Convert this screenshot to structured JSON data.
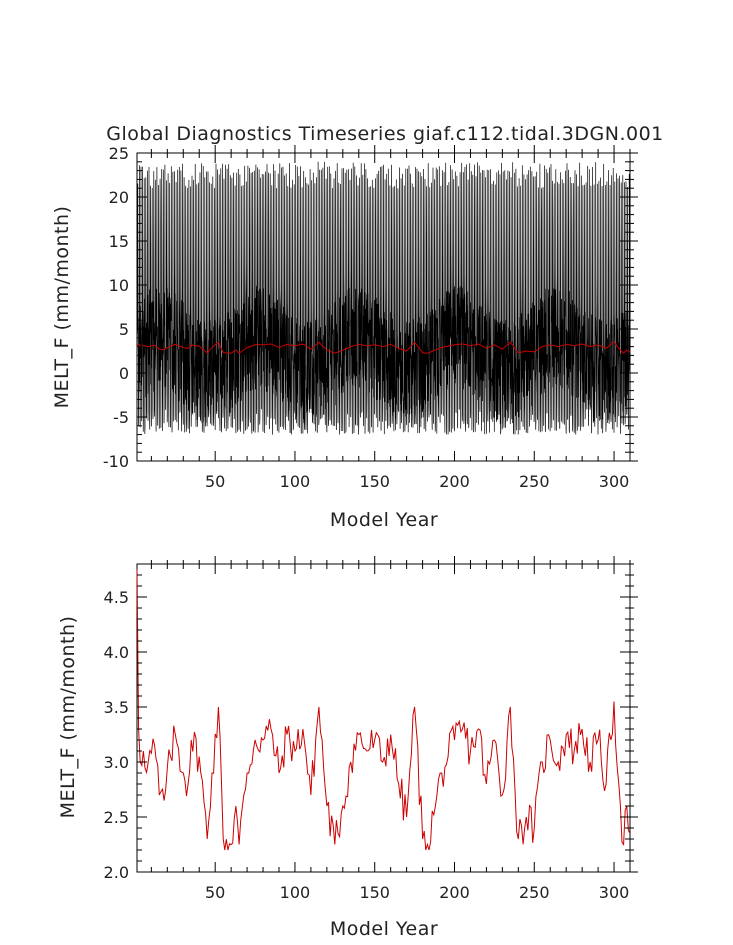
{
  "chart_data": [
    {
      "type": "line",
      "title": "Global Diagnostics Timeseries giaf.c112.tidal.3DGN.001",
      "xlabel": "Model Year",
      "ylabel": "MELT_F (mm/month)",
      "xlim": [
        1,
        310
      ],
      "ylim": [
        -10,
        25
      ],
      "xticks": [
        50,
        100,
        150,
        200,
        250,
        300
      ],
      "yticks": [
        -10,
        -5,
        0,
        5,
        10,
        15,
        20,
        25
      ],
      "series": [
        {
          "style": "monthly",
          "color": "#000000",
          "description_values": {
            "max_envelope_approx": [
              21,
              24
            ],
            "min_envelope_approx": [
              -7,
              -4
            ],
            "typical_upper_core": [
              6,
              10
            ],
            "typical_lower_core": [
              -5,
              -3
            ]
          }
        },
        {
          "style": "annual-mean",
          "color": "#cc0000",
          "approx_value": 2.9
        }
      ]
    },
    {
      "type": "line",
      "title": "",
      "xlabel": "Model Year",
      "ylabel": "MELT_F (mm/month)",
      "xlim": [
        1,
        310
      ],
      "ylim": [
        2.0,
        4.8
      ],
      "xticks": [
        50,
        100,
        150,
        200,
        250,
        300
      ],
      "yticks": [
        2.0,
        2.5,
        3.0,
        3.5,
        4.0,
        4.5
      ],
      "yticklabels": [
        "2.0",
        "2.5",
        "3.0",
        "3.5",
        "4.0",
        "4.5"
      ],
      "series": [
        {
          "style": "annual-mean",
          "color": "#cc0000",
          "first_value": 4.75,
          "keypoints": [
            [
              1,
              4.75
            ],
            [
              2,
              3.3
            ],
            [
              3,
              3.0
            ],
            [
              5,
              3.1
            ],
            [
              8,
              3.0
            ],
            [
              12,
              3.15
            ],
            [
              15,
              2.7
            ],
            [
              18,
              2.65
            ],
            [
              22,
              3.05
            ],
            [
              25,
              3.25
            ],
            [
              30,
              2.9
            ],
            [
              33,
              2.8
            ],
            [
              35,
              3.2
            ],
            [
              40,
              3.05
            ],
            [
              45,
              2.3
            ],
            [
              48,
              2.9
            ],
            [
              52,
              3.5
            ],
            [
              55,
              2.3
            ],
            [
              60,
              2.25
            ],
            [
              63,
              2.6
            ],
            [
              65,
              2.25
            ],
            [
              70,
              2.9
            ],
            [
              75,
              3.2
            ],
            [
              80,
              3.2
            ],
            [
              85,
              3.3
            ],
            [
              90,
              2.9
            ],
            [
              95,
              3.25
            ],
            [
              100,
              3.1
            ],
            [
              105,
              3.3
            ],
            [
              110,
              2.7
            ],
            [
              115,
              3.5
            ],
            [
              120,
              2.6
            ],
            [
              125,
              2.25
            ],
            [
              130,
              2.6
            ],
            [
              135,
              3.0
            ],
            [
              140,
              3.25
            ],
            [
              145,
              3.1
            ],
            [
              150,
              3.2
            ],
            [
              155,
              3.0
            ],
            [
              160,
              3.25
            ],
            [
              165,
              2.8
            ],
            [
              170,
              2.5
            ],
            [
              175,
              3.5
            ],
            [
              180,
              2.3
            ],
            [
              183,
              2.25
            ],
            [
              188,
              2.6
            ],
            [
              192,
              2.9
            ],
            [
              196,
              3.05
            ],
            [
              200,
              3.2
            ],
            [
              205,
              3.3
            ],
            [
              210,
              3.1
            ],
            [
              215,
              3.3
            ],
            [
              220,
              2.8
            ],
            [
              225,
              3.2
            ],
            [
              230,
              2.7
            ],
            [
              235,
              3.5
            ],
            [
              240,
              2.3
            ],
            [
              245,
              2.5
            ],
            [
              250,
              2.4
            ],
            [
              255,
              3.0
            ],
            [
              260,
              3.2
            ],
            [
              265,
              3.0
            ],
            [
              270,
              3.25
            ],
            [
              275,
              3.1
            ],
            [
              280,
              3.3
            ],
            [
              285,
              3.0
            ],
            [
              290,
              3.2
            ],
            [
              295,
              2.8
            ],
            [
              300,
              3.55
            ],
            [
              303,
              2.8
            ],
            [
              306,
              2.25
            ],
            [
              308,
              2.6
            ],
            [
              310,
              2.35
            ]
          ]
        }
      ]
    }
  ]
}
